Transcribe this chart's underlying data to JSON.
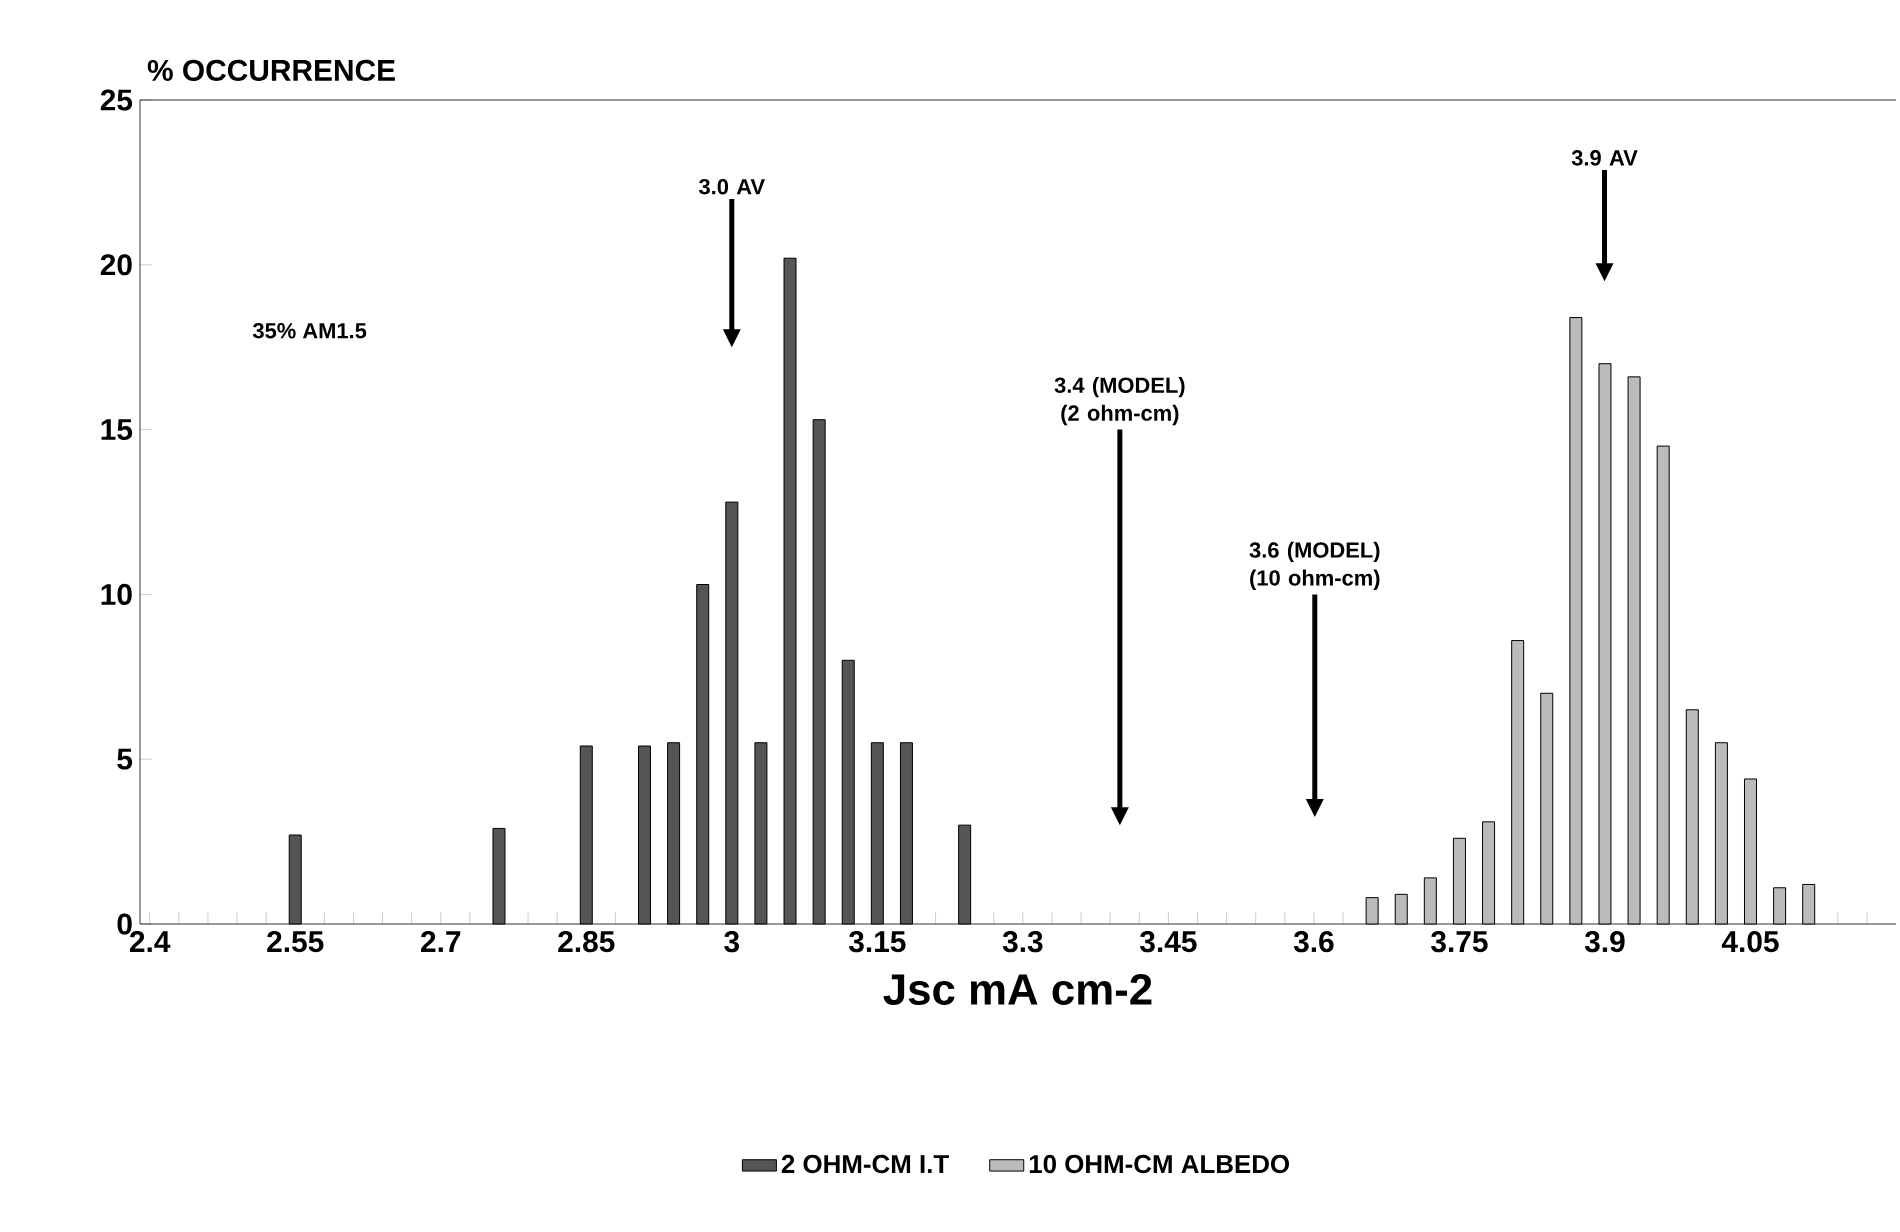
{
  "chart_data": {
    "type": "bar",
    "ylabel": "% OCCURRENCE",
    "xlabel": "Jsc mA cm-2",
    "xlim": [
      2.39,
      4.2
    ],
    "ylim": [
      0,
      25
    ],
    "yticks": [
      0,
      5,
      10,
      15,
      20,
      25
    ],
    "xticks": [
      2.4,
      {
        "value": 2.43,
        "label": null
      },
      {
        "value": 2.46,
        "label": null
      },
      {
        "value": 2.49,
        "label": null
      },
      {
        "value": 2.52,
        "label": null
      },
      2.55,
      {
        "value": 2.58,
        "label": null
      },
      {
        "value": 2.61,
        "label": null
      },
      {
        "value": 2.64,
        "label": null
      },
      {
        "value": 2.67,
        "label": null
      },
      2.7,
      {
        "value": 2.73,
        "label": null
      },
      {
        "value": 2.76,
        "label": null
      },
      {
        "value": 2.79,
        "label": null
      },
      {
        "value": 2.82,
        "label": null
      },
      2.85,
      {
        "value": 2.88,
        "label": null
      },
      {
        "value": 2.91,
        "label": null
      },
      {
        "value": 2.94,
        "label": null
      },
      {
        "value": 2.97,
        "label": null
      },
      3,
      {
        "value": 3.03,
        "label": null
      },
      {
        "value": 3.06,
        "label": null
      },
      {
        "value": 3.09,
        "label": null
      },
      {
        "value": 3.12,
        "label": null
      },
      3.15,
      {
        "value": 3.18,
        "label": null
      },
      {
        "value": 3.21,
        "label": null
      },
      {
        "value": 3.24,
        "label": null
      },
      {
        "value": 3.27,
        "label": null
      },
      3.3,
      {
        "value": 3.33,
        "label": null
      },
      {
        "value": 3.36,
        "label": null
      },
      {
        "value": 3.39,
        "label": null
      },
      {
        "value": 3.42,
        "label": null
      },
      3.45,
      {
        "value": 3.48,
        "label": null
      },
      {
        "value": 3.51,
        "label": null
      },
      {
        "value": 3.54,
        "label": null
      },
      {
        "value": 3.57,
        "label": null
      },
      3.6,
      {
        "value": 3.63,
        "label": null
      },
      {
        "value": 3.66,
        "label": null
      },
      {
        "value": 3.69,
        "label": null
      },
      {
        "value": 3.72,
        "label": null
      },
      3.75,
      {
        "value": 3.78,
        "label": null
      },
      {
        "value": 3.81,
        "label": null
      },
      {
        "value": 3.84,
        "label": null
      },
      {
        "value": 3.87,
        "label": null
      },
      3.9,
      {
        "value": 3.93,
        "label": null
      },
      {
        "value": 3.96,
        "label": null
      },
      {
        "value": 3.99,
        "label": null
      },
      {
        "value": 4.02,
        "label": null
      },
      4.05,
      {
        "value": 4.08,
        "label": null
      },
      {
        "value": 4.11,
        "label": null
      },
      {
        "value": 4.14,
        "label": null
      },
      {
        "value": 4.17,
        "label": null
      }
    ],
    "legend": "bottom",
    "series": [
      {
        "name": "2 OHM-CM I.T",
        "color": "#555555",
        "x": [
          2.55,
          2.76,
          2.85,
          2.91,
          2.94,
          2.97,
          3.0,
          3.03,
          3.06,
          3.09,
          3.12,
          3.15,
          3.18,
          3.24
        ],
        "values": [
          2.7,
          2.9,
          5.4,
          5.4,
          5.5,
          10.3,
          12.8,
          5.5,
          20.2,
          15.3,
          8.0,
          5.5,
          5.5,
          3.0
        ]
      },
      {
        "name": "10 OHM-CM ALBEDO",
        "color": "#bbbbbb",
        "x": [
          3.66,
          3.69,
          3.72,
          3.75,
          3.78,
          3.81,
          3.84,
          3.87,
          3.9,
          3.93,
          3.96,
          3.99,
          4.02,
          4.05,
          4.08,
          4.11
        ],
        "values": [
          0.8,
          0.9,
          1.4,
          2.6,
          3.1,
          8.6,
          7.0,
          18.4,
          17.0,
          16.6,
          14.5,
          6.5,
          5.5,
          4.4,
          1.1,
          1.2
        ]
      }
    ],
    "annotations": [
      "35% AM1.5",
      "3.0 AV",
      "3.9 AV",
      "3.4 (MODEL) (2 ohm-cm)",
      "3.6 (MODEL) (10 ohm-cm)"
    ]
  }
}
